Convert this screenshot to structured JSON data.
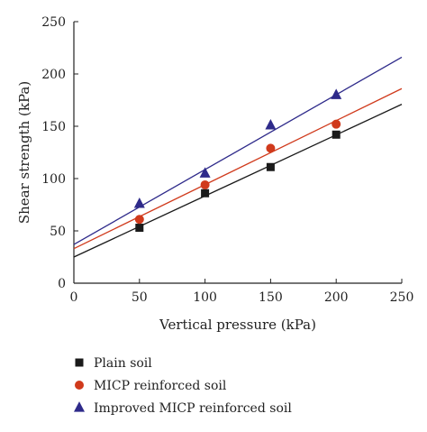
{
  "chart_data": {
    "type": "scatter",
    "xlabel": "Vertical pressure (kPa)",
    "ylabel": "Shear strength (kPa)",
    "xlim": [
      0,
      250
    ],
    "ylim": [
      0,
      250
    ],
    "xticks": [
      0,
      50,
      100,
      150,
      200,
      250
    ],
    "yticks": [
      0,
      50,
      100,
      150,
      200,
      250
    ],
    "grid": false,
    "legend_position": "bottom",
    "series": [
      {
        "name": "Plain soil",
        "marker": "square",
        "color": "#1a1a1a",
        "points": [
          [
            50,
            53
          ],
          [
            100,
            86
          ],
          [
            150,
            111
          ],
          [
            200,
            142
          ]
        ],
        "fit_line": {
          "x": [
            0,
            250
          ],
          "y": [
            25,
            171
          ]
        }
      },
      {
        "name": "MICP reinforced soil",
        "marker": "circle",
        "color": "#d03a1c",
        "points": [
          [
            50,
            61
          ],
          [
            100,
            94
          ],
          [
            150,
            129
          ],
          [
            200,
            152
          ]
        ],
        "fit_line": {
          "x": [
            0,
            250
          ],
          "y": [
            33,
            186
          ]
        }
      },
      {
        "name": "Improved MICP reinforced soil",
        "marker": "triangle",
        "color": "#2e2a8a",
        "points": [
          [
            50,
            76
          ],
          [
            100,
            105
          ],
          [
            150,
            151
          ],
          [
            200,
            180
          ]
        ],
        "fit_line": {
          "x": [
            0,
            250
          ],
          "y": [
            37,
            216
          ]
        }
      }
    ]
  }
}
